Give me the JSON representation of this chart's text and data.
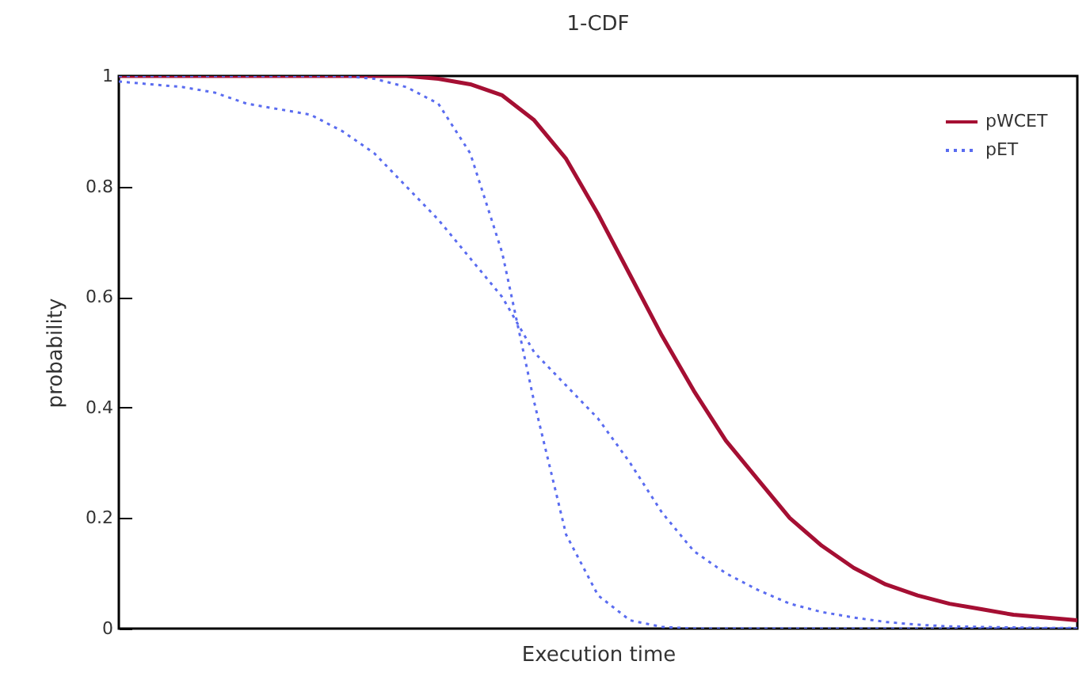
{
  "chart_data": {
    "type": "line",
    "title": "1-CDF",
    "xlabel": "Execution time",
    "ylabel": "probability",
    "categories": [
      null,
      null,
      null,
      null,
      null,
      null,
      null,
      null,
      null,
      null,
      null,
      null,
      null,
      null,
      null,
      null,
      null,
      null,
      null,
      null,
      null,
      null,
      null,
      null,
      null,
      null,
      null,
      null,
      null,
      null,
      null
    ],
    "ylim": [
      0,
      1
    ],
    "yticks": [
      0,
      0.2,
      0.4,
      0.6,
      0.8,
      1
    ],
    "grid": false,
    "legend": "top right",
    "marker": "none",
    "series": [
      {
        "name": "pWCET",
        "color": "#a50f33",
        "line_style": "solid",
        "values": [
          1,
          1,
          1,
          1,
          1,
          1,
          1,
          1,
          1,
          1,
          0.995,
          0.985,
          0.965,
          0.92,
          0.85,
          0.75,
          0.64,
          0.53,
          0.43,
          0.34,
          0.27,
          0.2,
          0.15,
          0.11,
          0.08,
          0.06,
          0.045,
          0.035,
          0.025,
          0.02,
          0.015
        ]
      },
      {
        "name": "pET",
        "color": "#5a6cf0",
        "line_style": "dotted",
        "values": [
          1,
          1,
          1,
          1,
          1,
          1,
          1,
          1,
          0.995,
          0.98,
          0.95,
          0.86,
          0.68,
          0.41,
          0.17,
          0.06,
          0.015,
          0.003,
          0,
          0,
          0,
          0,
          0,
          0,
          0,
          0,
          0,
          0,
          0,
          0,
          0
        ]
      },
      {
        "color": "#5a6cf0",
        "line_style": "dotted",
        "values": [
          0.99,
          0.985,
          0.98,
          0.97,
          0.95,
          0.94,
          0.93,
          0.9,
          0.86,
          0.8,
          0.74,
          0.67,
          0.6,
          0.5,
          0.44,
          0.38,
          0.3,
          0.21,
          0.14,
          0.1,
          0.07,
          0.045,
          0.03,
          0.02,
          0.012,
          0.007,
          0.004,
          0.003,
          0.002,
          0.001,
          0.001
        ]
      }
    ]
  }
}
